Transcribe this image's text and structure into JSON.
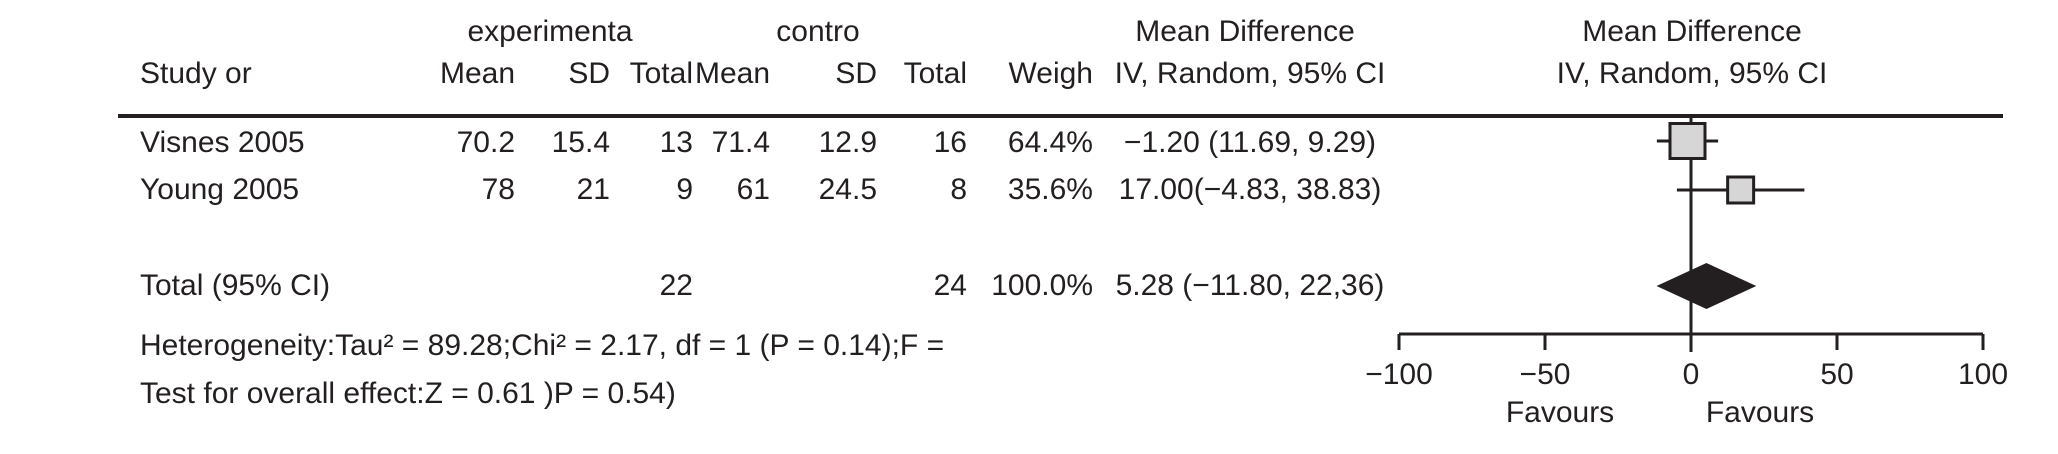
{
  "table": {
    "group_headers": {
      "experimental": "experimenta",
      "control": "contro"
    },
    "md_col": {
      "title": "Mean Difference",
      "subtitle": "IV, Random, 95% CI"
    },
    "plot_col": {
      "title": "Mean Difference",
      "subtitle": "IV, Random, 95% CI"
    },
    "study_header": "Study or",
    "sub_headers": {
      "mean1": "Mean",
      "sd1": "SD",
      "total1": "Total",
      "mean2": "Mean",
      "sd2": "SD",
      "total2": "Total",
      "weight": "Weigh"
    },
    "rows": [
      {
        "study": "Visnes 2005",
        "mean1": "70.2",
        "sd1": "15.4",
        "total1": "13",
        "mean2": "71.4",
        "sd2": "12.9",
        "total2": "16",
        "weight": "64.4%",
        "ci": "−1.20 (11.69, 9.29)"
      },
      {
        "study": "Young 2005",
        "mean1": "78",
        "sd1": "21",
        "total1": "9",
        "mean2": "61",
        "sd2": "24.5",
        "total2": "8",
        "weight": "35.6%",
        "ci": "17.00(−4.83, 38.83)"
      }
    ],
    "total_row": {
      "label": "Total (95% CI)",
      "total1": "22",
      "total2": "24",
      "weight": "100.0%",
      "ci": "5.28 (−11.80, 22,36)"
    },
    "heterogeneity": "Heterogeneity:Tau² = 89.28;Chi² = 2.17, df = 1 (P = 0.14);F =",
    "overall_effect": "Test for overall effect:Z = 0.61 )P = 0.54)"
  },
  "chart_data": {
    "type": "forest",
    "xlabel": "",
    "xlim": [
      -100,
      100
    ],
    "axis_ticks": [
      {
        "value": -100,
        "label": "−100"
      },
      {
        "value": -50,
        "label": "−50"
      },
      {
        "value": 0,
        "label": "0"
      },
      {
        "value": 50,
        "label": "50"
      },
      {
        "value": 100,
        "label": "100"
      }
    ],
    "favours_left": "Favours",
    "favours_right": "Favours",
    "studies": [
      {
        "name": "Visnes 2005",
        "md": -1.2,
        "ci_low": -11.69,
        "ci_high": 9.29,
        "weight_pct": 64.4
      },
      {
        "name": "Young 2005",
        "md": 17.0,
        "ci_low": -4.83,
        "ci_high": 38.83,
        "weight_pct": 35.6
      }
    ],
    "total": {
      "md": 5.28,
      "ci_low": -11.8,
      "ci_high": 22.36,
      "weight_pct": 100.0
    },
    "marker_color": "#d6d6d6",
    "line_color": "#231f20",
    "diamond_color": "#231f20"
  }
}
